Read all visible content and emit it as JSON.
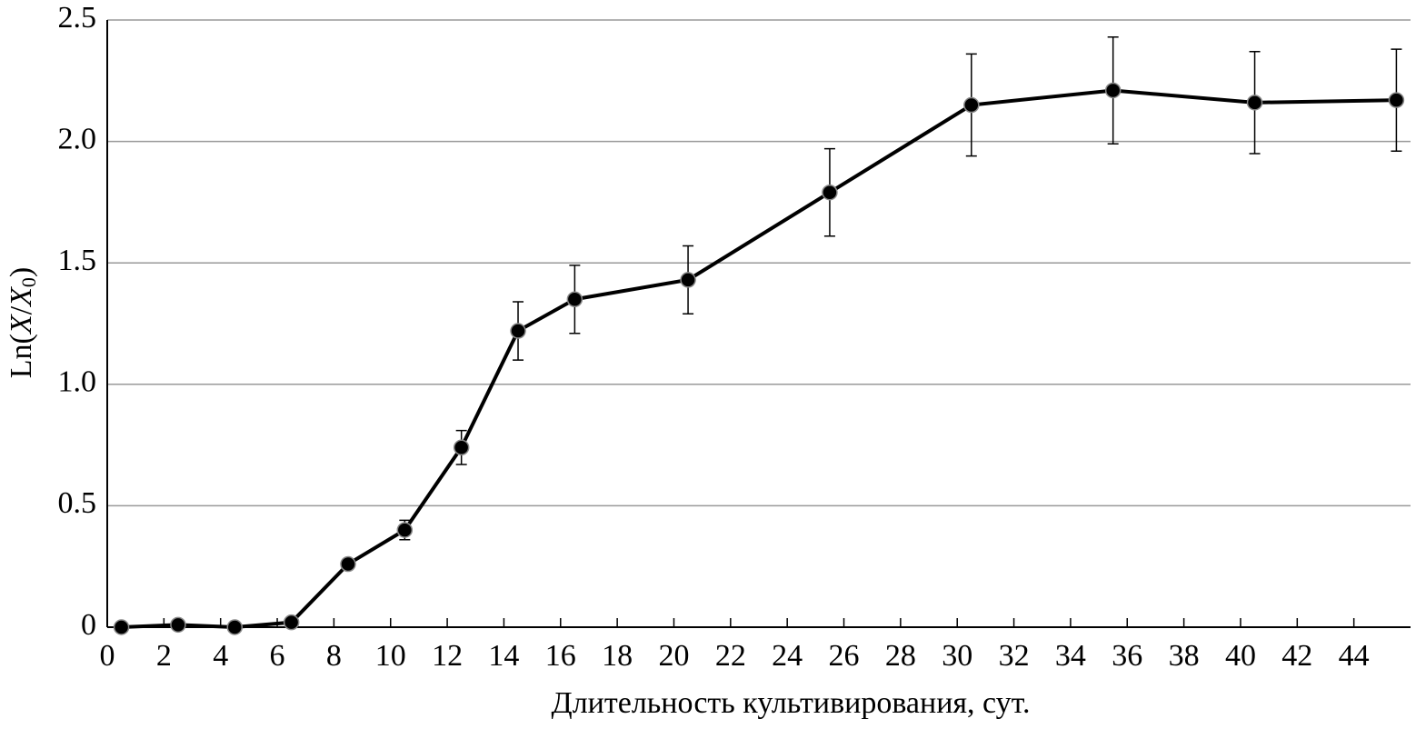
{
  "chart_data": {
    "type": "line",
    "x_label": "Длительность культивирования, сут.",
    "y_label": [
      "Ln(",
      "X",
      "/",
      "X",
      "0",
      ")"
    ],
    "x": [
      0.5,
      2.5,
      4.5,
      6.5,
      8.5,
      10.5,
      12.5,
      14.5,
      16.5,
      20.5,
      25.5,
      30.5,
      35.5,
      40.5,
      45.5
    ],
    "series": [
      {
        "color": "#000000",
        "values": [
          0,
          0.01,
          0,
          0.02,
          0.26,
          0.4,
          0.74,
          1.22,
          1.35,
          1.43,
          1.79,
          2.15,
          2.21,
          2.16,
          2.17
        ],
        "errors": [
          0,
          0,
          0,
          0.01,
          0.02,
          0.04,
          0.07,
          0.12,
          0.14,
          0.14,
          0.18,
          0.21,
          0.22,
          0.21,
          0.21
        ]
      }
    ],
    "xlim": [
      0,
      46
    ],
    "ylim": [
      0,
      2.5
    ],
    "xticks": [
      0,
      2,
      4,
      6,
      8,
      10,
      12,
      14,
      16,
      18,
      20,
      22,
      24,
      26,
      28,
      30,
      32,
      34,
      36,
      38,
      40,
      42,
      44
    ],
    "yticks": [
      0,
      0.5,
      {
        "value": 1,
        "label": "1.0"
      },
      1.5,
      {
        "value": 2,
        "label": "2.0"
      },
      2.5
    ],
    "grid": true
  }
}
